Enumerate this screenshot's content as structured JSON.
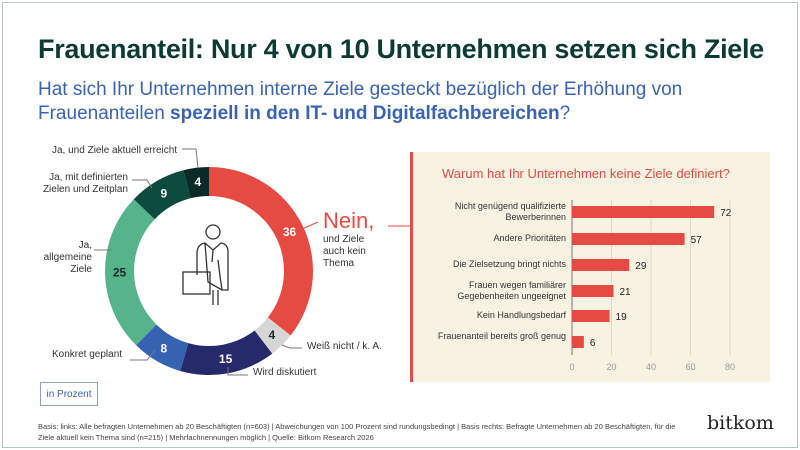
{
  "title": "Frauenanteil: Nur 4 von 10 Unternehmen setzen sich Ziele",
  "subtitle_plain": "Hat sich Ihr Unternehmen interne Ziele gesteckt bezüglich der Erhöhung von Frauenanteilen ",
  "subtitle_bold": "speziell in den IT- und Digitalfachbereichen",
  "subtitle_end": "?",
  "unit_label": "in Prozent",
  "footnote": "Basis: links: Alle befragten Unternehmen ab 20 Beschäftigten (n=603) | Abweichungen von 100 Prozent sind rundungsbedingt | Basis rechts: Befragte Unternehmen ab 20 Beschäftigten, für die Ziele aktuell kein Thema sind (n=215) | Mehrfachnennungen möglich | Quelle: Bitkom Research 2026",
  "logo": "bitkom",
  "chart_data": [
    {
      "type": "pie",
      "variant": "donut",
      "segments": [
        {
          "label": "Nein,",
          "sublabel": "und Ziele auch kein Thema",
          "value": 36,
          "color": "#e54b42"
        },
        {
          "label": "Weiß nicht / k. A.",
          "value": 4,
          "color": "#d6d6d6"
        },
        {
          "label": "Wird diskutiert",
          "value": 15,
          "color": "#262a6b"
        },
        {
          "label": "Konkret geplant",
          "value": 8,
          "color": "#3563b2"
        },
        {
          "label": "Ja, allgemeine Ziele",
          "value": 25,
          "color": "#55b48a"
        },
        {
          "label": "Ja, mit definierten Zielen und Zeitplan",
          "value": 9,
          "color": "#0b4a3c"
        },
        {
          "label": "Ja, und Ziele aktuell erreicht",
          "value": 4,
          "color": "#0a2a28"
        }
      ]
    },
    {
      "type": "bar",
      "orientation": "horizontal",
      "title": "Warum hat Ihr Unternehmen keine Ziele definiert?",
      "categories": [
        "Nicht genügend qualifizierte Bewerberinnen",
        "Andere Prioritäten",
        "Die Zielsetzung bringt nichts",
        "Frauen wegen familiärer Gegebenheiten ungeeignet",
        "Kein Handlungsbedarf",
        "Frauenanteil bereits groß genug"
      ],
      "values": [
        72,
        57,
        29,
        21,
        19,
        6
      ],
      "xlim": [
        0,
        80
      ],
      "ticks": [
        "0",
        "20",
        "40",
        "60",
        "80"
      ],
      "grid": true,
      "color": "#e54b42"
    }
  ]
}
